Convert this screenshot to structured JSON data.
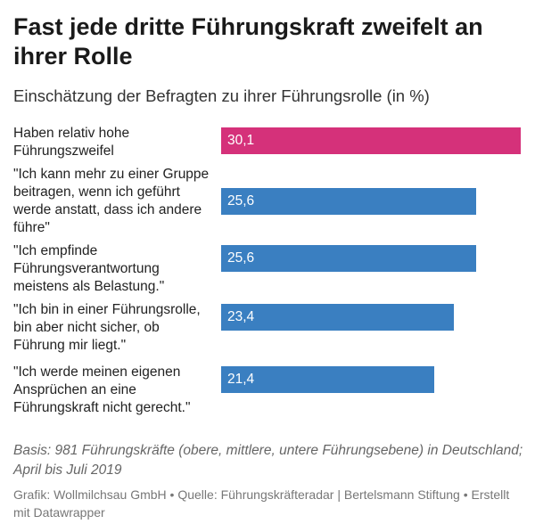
{
  "title": "Fast jede dritte Führungskraft zweifelt an ihrer Rolle",
  "subtitle": "Einschätzung der Befragten zu ihrer Führungsrolle (in %)",
  "note": "Basis: 981 Führungskräfte (obere, mittlere, untere Führungsebene) in Deutschland; April bis Juli 2019",
  "footer": "Grafik: Wollmilchsau GmbH • Quelle: Führungskräfteradar | Bertelsmann Stiftung • Erstellt mit Datawrapper",
  "chart_data": {
    "type": "bar",
    "orientation": "horizontal",
    "title": "Fast jede dritte Führungskraft zweifelt an ihrer Rolle",
    "subtitle": "Einschätzung der Befragten zu ihrer Führungsrolle (in %)",
    "xlim": [
      0,
      30.1
    ],
    "categories": [
      "Haben relativ hohe Führungszweifel",
      "\"Ich kann mehr zu einer Gruppe beitragen, wenn ich geführt werde anstatt, dass ich andere führe\"",
      "\"Ich empfinde Führungsverantwortung meistens als Belastung.\"",
      "\"Ich bin in einer Führungsrolle, bin aber nicht sicher, ob Führung mir liegt.\"",
      "\"Ich werde meinen eigenen Ansprüchen an eine Führungskraft nicht gerecht.\""
    ],
    "values": [
      30.1,
      25.6,
      25.6,
      23.4,
      21.4
    ],
    "value_labels": [
      "30,1",
      "25,6",
      "25,6",
      "23,4",
      "21,4"
    ],
    "bar_colors": [
      "#d5317a",
      "#3a7fc1",
      "#3a7fc1",
      "#3a7fc1",
      "#3a7fc1"
    ]
  }
}
